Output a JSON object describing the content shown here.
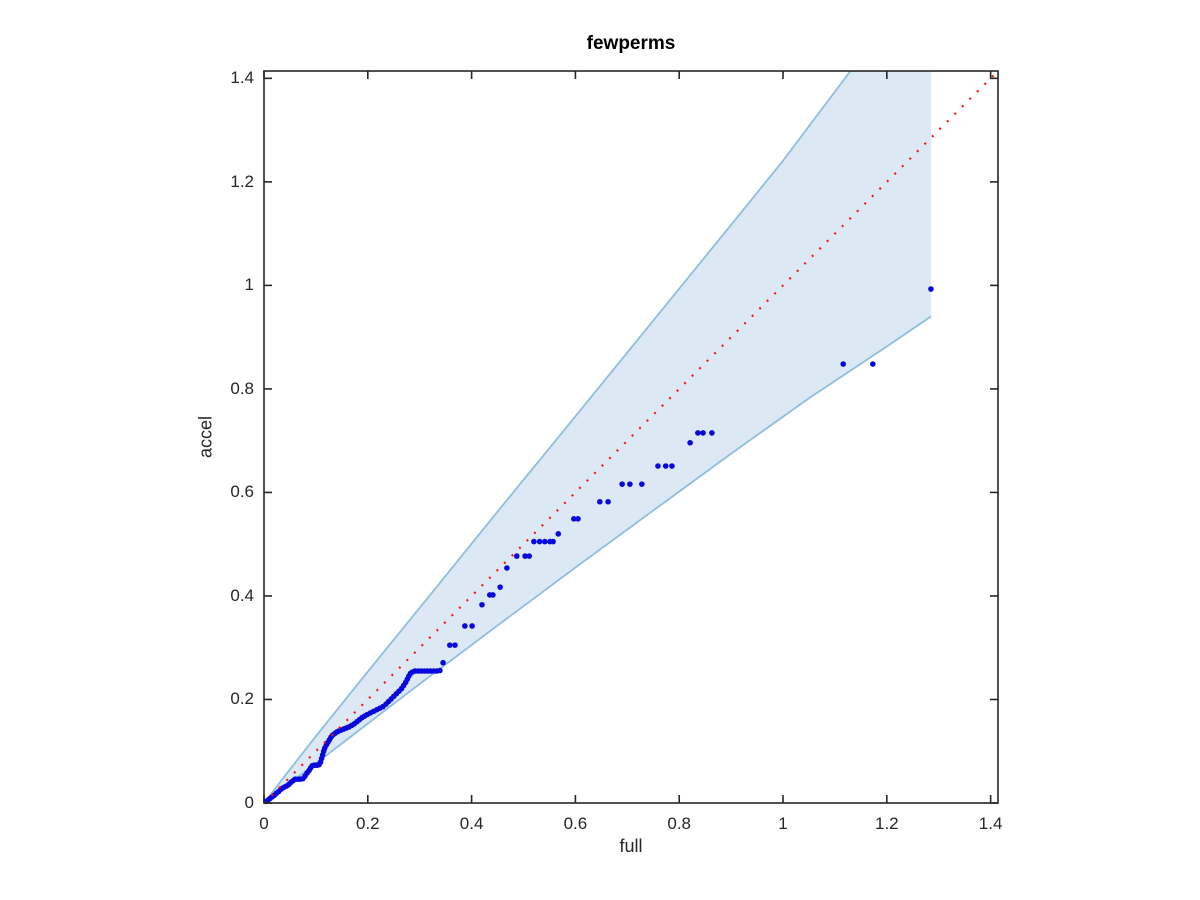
{
  "figure": {
    "background": "#ffffff",
    "kind": "matlab-style-plot"
  },
  "chart_data": {
    "type": "scatter",
    "title": "fewperms",
    "xlabel": "full",
    "ylabel": "accel",
    "xlim": [
      0,
      1.4142
    ],
    "ylim": [
      0,
      1.4142
    ],
    "grid": false,
    "legend": "none",
    "box": true,
    "tick_dir": "in",
    "axis_color": "#262626",
    "xticks": [
      0,
      0.2,
      0.4,
      0.6,
      0.8,
      1,
      1.2,
      1.4
    ],
    "yticks": [
      0,
      0.2,
      0.4,
      0.6,
      0.8,
      1,
      1.2,
      1.4
    ],
    "xtick_labels": [
      "0",
      "0.2",
      "0.4",
      "0.6",
      "0.8",
      "1",
      "1.2",
      "1.4"
    ],
    "ytick_labels": [
      "0",
      "0.2",
      "0.4",
      "0.6",
      "0.8",
      "1",
      "1.2",
      "1.4"
    ],
    "series": [
      {
        "name": "confidence-band",
        "type": "band",
        "fill_color": "#dce9f4",
        "edge_color": "#8fbedd",
        "edge_width": 1.8,
        "lower": [
          [
            0,
            0
          ],
          [
            0.15,
            0.115
          ],
          [
            0.3,
            0.23
          ],
          [
            0.45,
            0.343
          ],
          [
            0.6,
            0.455
          ],
          [
            0.75,
            0.565
          ],
          [
            0.9,
            0.675
          ],
          [
            1.05,
            0.782
          ],
          [
            1.2,
            0.882
          ],
          [
            1.285,
            0.94
          ]
        ],
        "upper": [
          [
            0,
            0
          ],
          [
            0.05,
            0.065
          ],
          [
            0.1,
            0.129
          ],
          [
            0.2,
            0.254
          ],
          [
            0.3,
            0.377
          ],
          [
            0.45,
            0.563
          ],
          [
            0.6,
            0.747
          ],
          [
            0.75,
            0.932
          ],
          [
            0.9,
            1.117
          ],
          [
            1.0,
            1.241
          ],
          [
            1.13,
            1.4142
          ]
        ],
        "x_end": 1.285,
        "clip_top": 1.4142
      },
      {
        "name": "sample-points",
        "type": "scatter",
        "marker": "dot",
        "color": "#0808dd",
        "marker_radius": 2.8,
        "points": [
          [
            0.004,
            0.003
          ],
          [
            0.008,
            0.006
          ],
          [
            0.012,
            0.009
          ],
          [
            0.016,
            0.012
          ],
          [
            0.02,
            0.015
          ],
          [
            0.024,
            0.019
          ],
          [
            0.028,
            0.022
          ],
          [
            0.032,
            0.026
          ],
          [
            0.036,
            0.029
          ],
          [
            0.04,
            0.031
          ],
          [
            0.044,
            0.033
          ],
          [
            0.048,
            0.036
          ],
          [
            0.052,
            0.04
          ],
          [
            0.056,
            0.043
          ],
          [
            0.06,
            0.046
          ],
          [
            0.065,
            0.046
          ],
          [
            0.07,
            0.046
          ],
          [
            0.075,
            0.047
          ],
          [
            0.079,
            0.052
          ],
          [
            0.083,
            0.058
          ],
          [
            0.087,
            0.063
          ],
          [
            0.09,
            0.068
          ],
          [
            0.093,
            0.072
          ],
          [
            0.097,
            0.073
          ],
          [
            0.102,
            0.073
          ],
          [
            0.106,
            0.074
          ],
          [
            0.109,
            0.079
          ],
          [
            0.111,
            0.086
          ],
          [
            0.113,
            0.093
          ],
          [
            0.115,
            0.1
          ],
          [
            0.117,
            0.106
          ],
          [
            0.12,
            0.112
          ],
          [
            0.123,
            0.117
          ],
          [
            0.126,
            0.122
          ],
          [
            0.129,
            0.127
          ],
          [
            0.132,
            0.131
          ],
          [
            0.136,
            0.134
          ],
          [
            0.14,
            0.137
          ],
          [
            0.144,
            0.139
          ],
          [
            0.149,
            0.141
          ],
          [
            0.154,
            0.143
          ],
          [
            0.159,
            0.145
          ],
          [
            0.164,
            0.147
          ],
          [
            0.169,
            0.15
          ],
          [
            0.174,
            0.153
          ],
          [
            0.179,
            0.157
          ],
          [
            0.184,
            0.161
          ],
          [
            0.189,
            0.165
          ],
          [
            0.194,
            0.168
          ],
          [
            0.199,
            0.171
          ],
          [
            0.205,
            0.174
          ],
          [
            0.211,
            0.177
          ],
          [
            0.217,
            0.18
          ],
          [
            0.223,
            0.183
          ],
          [
            0.229,
            0.186
          ],
          [
            0.235,
            0.191
          ],
          [
            0.24,
            0.196
          ],
          [
            0.245,
            0.201
          ],
          [
            0.25,
            0.206
          ],
          [
            0.255,
            0.211
          ],
          [
            0.26,
            0.216
          ],
          [
            0.265,
            0.221
          ],
          [
            0.269,
            0.227
          ],
          [
            0.273,
            0.233
          ],
          [
            0.276,
            0.239
          ],
          [
            0.279,
            0.245
          ],
          [
            0.282,
            0.25
          ],
          [
            0.286,
            0.253
          ],
          [
            0.291,
            0.255
          ],
          [
            0.297,
            0.255
          ],
          [
            0.303,
            0.255
          ],
          [
            0.309,
            0.255
          ],
          [
            0.315,
            0.255
          ],
          [
            0.321,
            0.255
          ],
          [
            0.327,
            0.255
          ],
          [
            0.333,
            0.255
          ],
          [
            0.339,
            0.256
          ],
          [
            0.345,
            0.271
          ],
          [
            0.358,
            0.305
          ],
          [
            0.368,
            0.305
          ],
          [
            0.387,
            0.342
          ],
          [
            0.401,
            0.342
          ],
          [
            0.42,
            0.383
          ],
          [
            0.435,
            0.402
          ],
          [
            0.441,
            0.402
          ],
          [
            0.455,
            0.417
          ],
          [
            0.468,
            0.454
          ],
          [
            0.487,
            0.477
          ],
          [
            0.503,
            0.477
          ],
          [
            0.511,
            0.477
          ],
          [
            0.52,
            0.505
          ],
          [
            0.531,
            0.505
          ],
          [
            0.541,
            0.505
          ],
          [
            0.551,
            0.505
          ],
          [
            0.557,
            0.505
          ],
          [
            0.567,
            0.52
          ],
          [
            0.597,
            0.549
          ],
          [
            0.605,
            0.549
          ],
          [
            0.647,
            0.582
          ],
          [
            0.663,
            0.582
          ],
          [
            0.69,
            0.616
          ],
          [
            0.705,
            0.616
          ],
          [
            0.728,
            0.616
          ],
          [
            0.759,
            0.651
          ],
          [
            0.774,
            0.651
          ],
          [
            0.786,
            0.651
          ],
          [
            0.821,
            0.696
          ],
          [
            0.836,
            0.715
          ],
          [
            0.846,
            0.715
          ],
          [
            0.863,
            0.715
          ],
          [
            1.116,
            0.848
          ],
          [
            1.173,
            0.848
          ],
          [
            1.285,
            0.993
          ]
        ]
      },
      {
        "name": "identity-reference-line",
        "type": "line",
        "style": "dotted",
        "color": "#fa1414",
        "width": 2.2,
        "points": [
          [
            0,
            0
          ],
          [
            1.4142,
            1.4142
          ]
        ]
      }
    ]
  }
}
